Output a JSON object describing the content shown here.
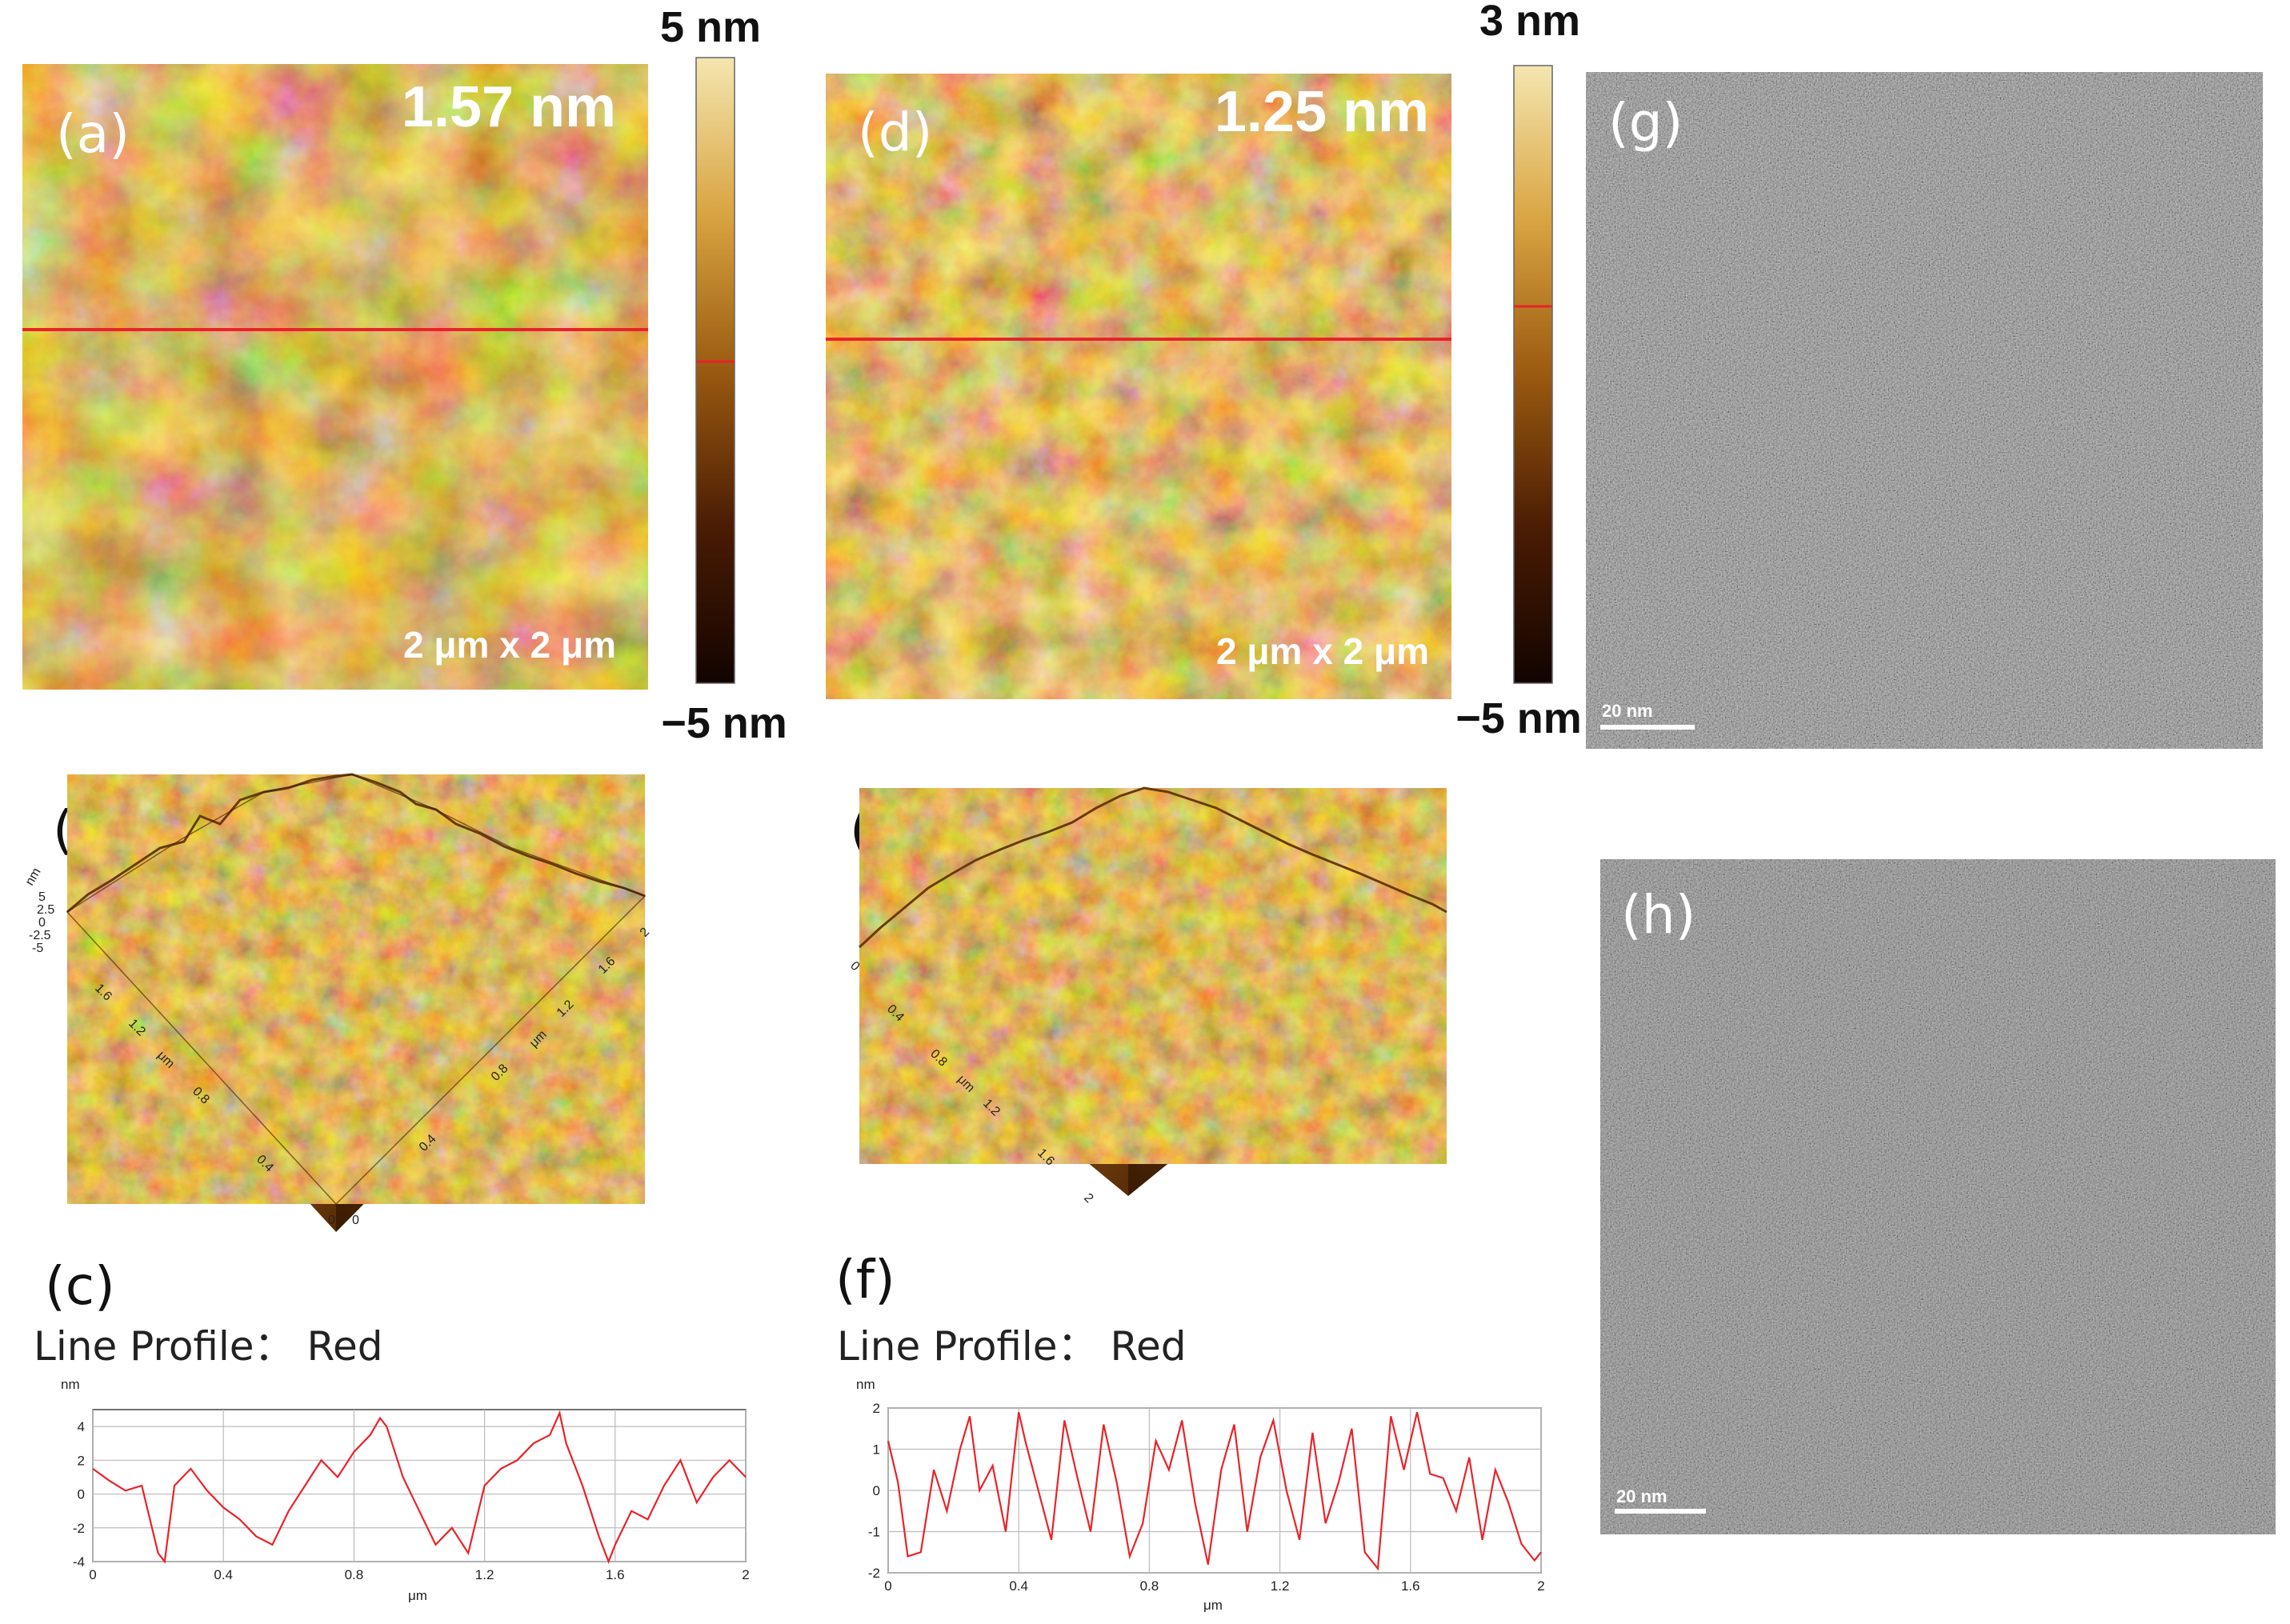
{
  "panels": {
    "a": {
      "letter": "(a)",
      "rms": "1.57 nm",
      "scan_size": "2 μm x 2 μm"
    },
    "b": {
      "letter": "(b)",
      "z_ticks": [
        "nm",
        "5",
        "2.5",
        "0",
        "-2.5",
        "-5"
      ],
      "x_ticks": [
        "0",
        "0.4",
        "0.8",
        "1.2",
        "1.6",
        "2"
      ],
      "y_ticks": [
        "0",
        "0.4",
        "0.8",
        "1.2",
        "1.6",
        "2"
      ],
      "axis_unit": "μm"
    },
    "c": {
      "letter": "(c)",
      "caption": "Line Profile：  Red",
      "y_unit": "nm",
      "x_unit": "μm",
      "y_ticks": [
        "4",
        "2",
        "0",
        "-2",
        "-4"
      ],
      "x_ticks": [
        "0",
        "0.4",
        "0.8",
        "1.2",
        "1.6",
        "2"
      ]
    },
    "d": {
      "letter": "(d)",
      "rms": "1.25 nm",
      "scan_size": "2 μm x 2 μm"
    },
    "e": {
      "letter": "(e)",
      "x_ticks": [
        "0",
        "0.4",
        "0.8",
        "1.2",
        "1.6",
        "2"
      ],
      "axis_unit": "μm"
    },
    "f": {
      "letter": "(f)",
      "caption": "Line Profile：  Red",
      "y_unit": "nm",
      "x_unit": "μm",
      "y_ticks": [
        "2",
        "1",
        "0",
        "-1",
        "-2"
      ],
      "x_ticks": [
        "0",
        "0.4",
        "0.8",
        "1.2",
        "1.6",
        "2"
      ]
    },
    "g": {
      "letter": "(g)",
      "scale_bar": "20 nm"
    },
    "h": {
      "letter": "(h)",
      "scale_bar": "20 nm"
    }
  },
  "colorbars": {
    "left": {
      "top": "5 nm",
      "bottom": "−5 nm"
    },
    "right": {
      "top": "3 nm",
      "bottom": "−5 nm"
    }
  },
  "colors": {
    "profile_line": "#e8232a",
    "afm_dark": "#3a1a02",
    "afm_light": "#f4e6b0"
  },
  "chart_data": [
    {
      "type": "line",
      "panel": "c",
      "title": "Line Profile：  Red",
      "xlabel": "μm",
      "ylabel": "nm",
      "xlim": [
        0,
        2
      ],
      "ylim": [
        -4,
        5
      ],
      "series": [
        {
          "x": [
            0,
            0.05,
            0.1,
            0.15,
            0.2,
            0.22,
            0.25,
            0.3,
            0.35,
            0.4,
            0.45,
            0.5,
            0.55,
            0.6,
            0.65,
            0.7,
            0.75,
            0.8,
            0.85,
            0.88,
            0.9,
            0.95,
            1.0,
            1.05,
            1.1,
            1.15,
            1.2,
            1.25,
            1.3,
            1.35,
            1.4,
            1.43,
            1.45,
            1.5,
            1.55,
            1.58,
            1.6,
            1.65,
            1.7,
            1.75,
            1.8,
            1.85,
            1.9,
            1.95,
            2.0
          ],
          "y": [
            1.5,
            0.8,
            0.2,
            0.5,
            -3.5,
            -4.0,
            0.5,
            1.5,
            0.2,
            -0.8,
            -1.5,
            -2.5,
            -3.0,
            -1.0,
            0.5,
            2.0,
            1.0,
            2.5,
            3.5,
            4.5,
            4.0,
            1.0,
            -1.0,
            -3.0,
            -2.0,
            -3.5,
            0.5,
            1.5,
            2.0,
            3.0,
            3.5,
            4.8,
            3.0,
            0.5,
            -2.5,
            -4.0,
            -3.0,
            -1.0,
            -1.5,
            0.5,
            2.0,
            -0.5,
            1.0,
            2.0,
            1.0
          ]
        }
      ]
    },
    {
      "type": "line",
      "panel": "f",
      "title": "Line Profile：  Red",
      "xlabel": "μm",
      "ylabel": "nm",
      "xlim": [
        0,
        2
      ],
      "ylim": [
        -2,
        2
      ],
      "series": [
        {
          "x": [
            0,
            0.03,
            0.06,
            0.1,
            0.14,
            0.18,
            0.22,
            0.25,
            0.28,
            0.32,
            0.36,
            0.4,
            0.42,
            0.46,
            0.5,
            0.54,
            0.58,
            0.62,
            0.66,
            0.7,
            0.74,
            0.78,
            0.82,
            0.86,
            0.9,
            0.94,
            0.98,
            1.02,
            1.06,
            1.1,
            1.14,
            1.18,
            1.22,
            1.26,
            1.3,
            1.34,
            1.38,
            1.42,
            1.46,
            1.5,
            1.54,
            1.58,
            1.62,
            1.66,
            1.7,
            1.74,
            1.78,
            1.82,
            1.86,
            1.9,
            1.94,
            1.98,
            2.0
          ],
          "y": [
            1.2,
            0.2,
            -1.6,
            -1.5,
            0.5,
            -0.5,
            1.0,
            1.8,
            0.0,
            0.6,
            -1.0,
            1.9,
            1.2,
            0.0,
            -1.2,
            1.7,
            0.3,
            -1.0,
            1.6,
            0.2,
            -1.6,
            -0.8,
            1.2,
            0.5,
            1.7,
            -0.3,
            -1.8,
            0.5,
            1.6,
            -1.0,
            0.8,
            1.7,
            0.0,
            -1.2,
            1.4,
            -0.8,
            0.2,
            1.5,
            -1.5,
            -1.9,
            1.8,
            0.5,
            1.9,
            0.4,
            0.3,
            -0.5,
            0.8,
            -1.2,
            0.5,
            -0.3,
            -1.3,
            -1.7,
            -1.5
          ]
        }
      ]
    }
  ]
}
